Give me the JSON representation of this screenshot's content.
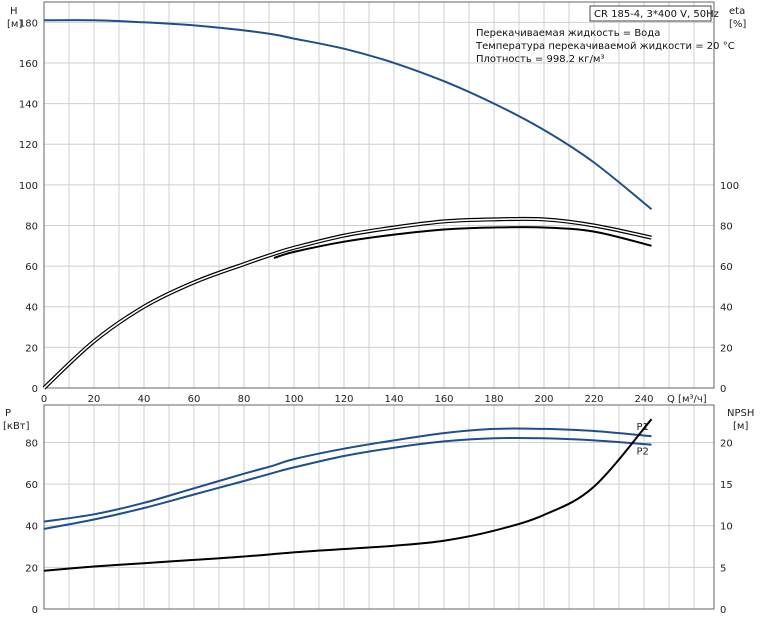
{
  "header": {
    "model": "CR 185-4, 3*400 V, 50Hz",
    "info_lines": [
      "Перекачиваемая жидкость = Вода",
      "Температура перекачиваемой жидкости = 20 °C",
      "Плотность = 998.2 кг/м³"
    ]
  },
  "colors": {
    "blue": "#1f4e8c",
    "black": "#000000",
    "grid": "#cfcfcf"
  },
  "chart_data": [
    {
      "type": "line",
      "x_label": "Q [м³/ч]",
      "xlim": [
        0,
        268
      ],
      "x_ticks": [
        0,
        20,
        40,
        60,
        80,
        100,
        120,
        140,
        160,
        180,
        200,
        220,
        240
      ],
      "left_axis": {
        "label_line1": "H",
        "label_line2": "[м]",
        "ylim": [
          0,
          190
        ],
        "ticks": [
          0,
          20,
          40,
          60,
          80,
          100,
          120,
          140,
          160,
          180
        ]
      },
      "right_axis": {
        "label_line1": "eta",
        "label_line2": "[%]",
        "ylim": [
          0,
          190
        ],
        "ticks": [
          0,
          20,
          40,
          60,
          80,
          100
        ]
      },
      "series": [
        {
          "axis": "left",
          "color": "#1f4e8c",
          "style": "single",
          "x": [
            0,
            20,
            40,
            60,
            80,
            92,
            100,
            120,
            140,
            160,
            180,
            200,
            220,
            243
          ],
          "y": [
            181,
            181,
            180,
            178.5,
            176,
            174,
            172,
            167,
            160,
            151,
            140,
            127,
            111,
            88
          ]
        },
        {
          "axis": "right",
          "color": "#000000",
          "style": "double",
          "x": [
            0,
            20,
            40,
            60,
            80,
            92,
            100,
            120,
            140,
            160,
            180,
            200,
            220,
            243
          ],
          "y": [
            0,
            23,
            40,
            52,
            61,
            66,
            69,
            75,
            79,
            82,
            83,
            83,
            80,
            74
          ]
        },
        {
          "axis": "right",
          "color": "#000000",
          "style": "single",
          "x": [
            92,
            100,
            120,
            140,
            160,
            180,
            200,
            220,
            243
          ],
          "y": [
            64,
            67,
            72,
            75.5,
            78,
            79,
            79,
            77,
            70
          ]
        }
      ]
    },
    {
      "type": "line",
      "x_label": "",
      "xlim": [
        0,
        268
      ],
      "left_axis": {
        "label_line1": "P",
        "label_line2": "[кВт]",
        "ylim": [
          0,
          98
        ],
        "ticks": [
          0,
          20,
          40,
          60,
          80
        ]
      },
      "right_axis": {
        "label_line1": "NPSH",
        "label_line2": "[м]",
        "ylim": [
          0,
          24.5
        ],
        "ticks": [
          0,
          5,
          10,
          15,
          20
        ]
      },
      "series": [
        {
          "name": "P1",
          "axis": "left",
          "color": "#1f4e8c",
          "x": [
            0,
            20,
            40,
            60,
            80,
            92,
            100,
            120,
            140,
            160,
            180,
            200,
            220,
            243
          ],
          "y": [
            42,
            45.5,
            51,
            58,
            65,
            69,
            72,
            77,
            81,
            84.5,
            86.5,
            86.5,
            85.5,
            83
          ]
        },
        {
          "name": "P2",
          "axis": "left",
          "color": "#1f4e8c",
          "x": [
            0,
            20,
            40,
            60,
            80,
            92,
            100,
            120,
            140,
            160,
            180,
            200,
            220,
            243
          ],
          "y": [
            38.5,
            43,
            48.5,
            55,
            61.5,
            65.5,
            68,
            73.5,
            77.5,
            80.5,
            82,
            82,
            81,
            79
          ]
        },
        {
          "name": "",
          "axis": "right",
          "color": "#000000",
          "x": [
            0,
            20,
            40,
            60,
            80,
            100,
            120,
            140,
            160,
            180,
            200,
            220,
            243
          ],
          "y": [
            4.6,
            5.1,
            5.5,
            5.9,
            6.3,
            6.8,
            7.2,
            7.6,
            8.2,
            9.4,
            11.3,
            14.7,
            22.8
          ]
        }
      ]
    }
  ]
}
